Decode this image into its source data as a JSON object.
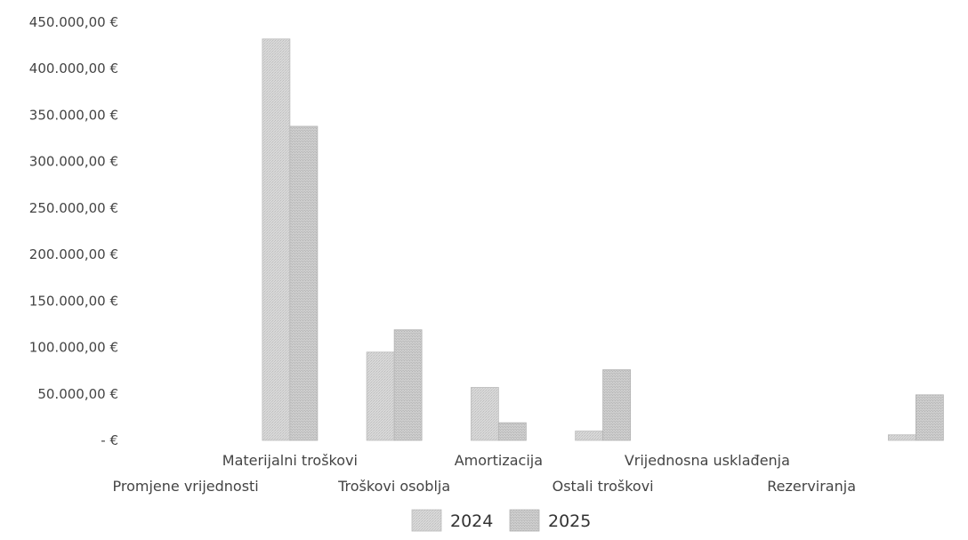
{
  "chart_data": {
    "type": "bar",
    "categories": [
      "Promjene vrijednosti",
      "Materijalni troškovi",
      "Troškovi osoblja",
      "Amortizacija",
      "Ostali troškovi",
      "Vrijednosna usklađenja",
      "Rezerviranja",
      ""
    ],
    "series": [
      {
        "name": "2024",
        "values": [
          0,
          432000,
          95000,
          57000,
          10000,
          0,
          0,
          6000
        ]
      },
      {
        "name": "2025",
        "values": [
          0,
          338000,
          119000,
          19000,
          76000,
          0,
          0,
          49000
        ]
      }
    ],
    "y_ticks": [
      "-  €",
      "50.000,00 €",
      "100.000,00 €",
      "150.000,00 €",
      "200.000,00 €",
      "250.000,00 €",
      "300.000,00 €",
      "350.000,00 €",
      "400.000,00 €",
      "450.000,00 €"
    ],
    "ylim": [
      0,
      450000
    ],
    "title": "",
    "xlabel": "",
    "ylabel": "",
    "legend_position": "bottom",
    "grid": false,
    "colors": {
      "2024": "#d3d3d3",
      "2025": "#c8c8c8"
    }
  }
}
